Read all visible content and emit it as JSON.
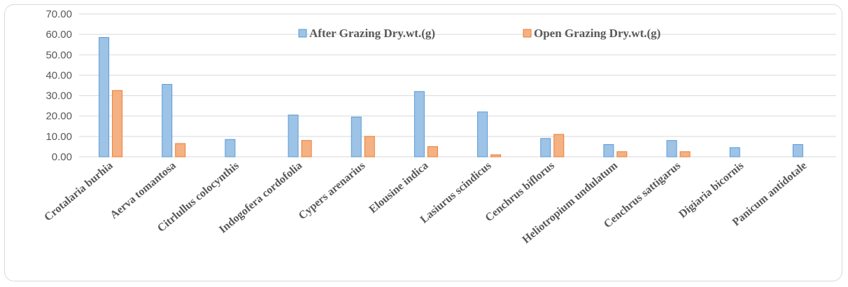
{
  "chart_data": {
    "type": "bar",
    "categories": [
      "Crotalaria burhia",
      "Aerva tomantosa",
      "Citrlullus colocynthis",
      "Indogofera cordofolia",
      "Cypers arenarius",
      "Elousine indica",
      "Lasiurus scindicus",
      "Cenchrus biflorus",
      "Heliotropium undulatum",
      "Cenchrus sattigarus",
      "Digiaria bicornis",
      "Panicum antidotale"
    ],
    "series": [
      {
        "name": "After Grazing Dry.wt.(g)",
        "color": "#9dc3e6",
        "values": [
          58.5,
          35.5,
          8.5,
          20.5,
          19.5,
          32.0,
          22.0,
          9.0,
          6.0,
          8.0,
          4.5,
          6.0
        ]
      },
      {
        "name": "Open Grazing Dry.wt.(g)",
        "color": "#f4b183",
        "values": [
          32.5,
          6.5,
          0,
          8.0,
          10.0,
          5.0,
          1.0,
          11.0,
          2.5,
          2.5,
          0,
          0
        ]
      }
    ],
    "y_ticks": [
      "0.00",
      "10.00",
      "20.00",
      "30.00",
      "40.00",
      "50.00",
      "60.00",
      "70.00"
    ],
    "ylim": [
      0,
      70
    ],
    "grid": true,
    "legend": "top-center",
    "title": "",
    "xlabel": "",
    "ylabel": ""
  }
}
